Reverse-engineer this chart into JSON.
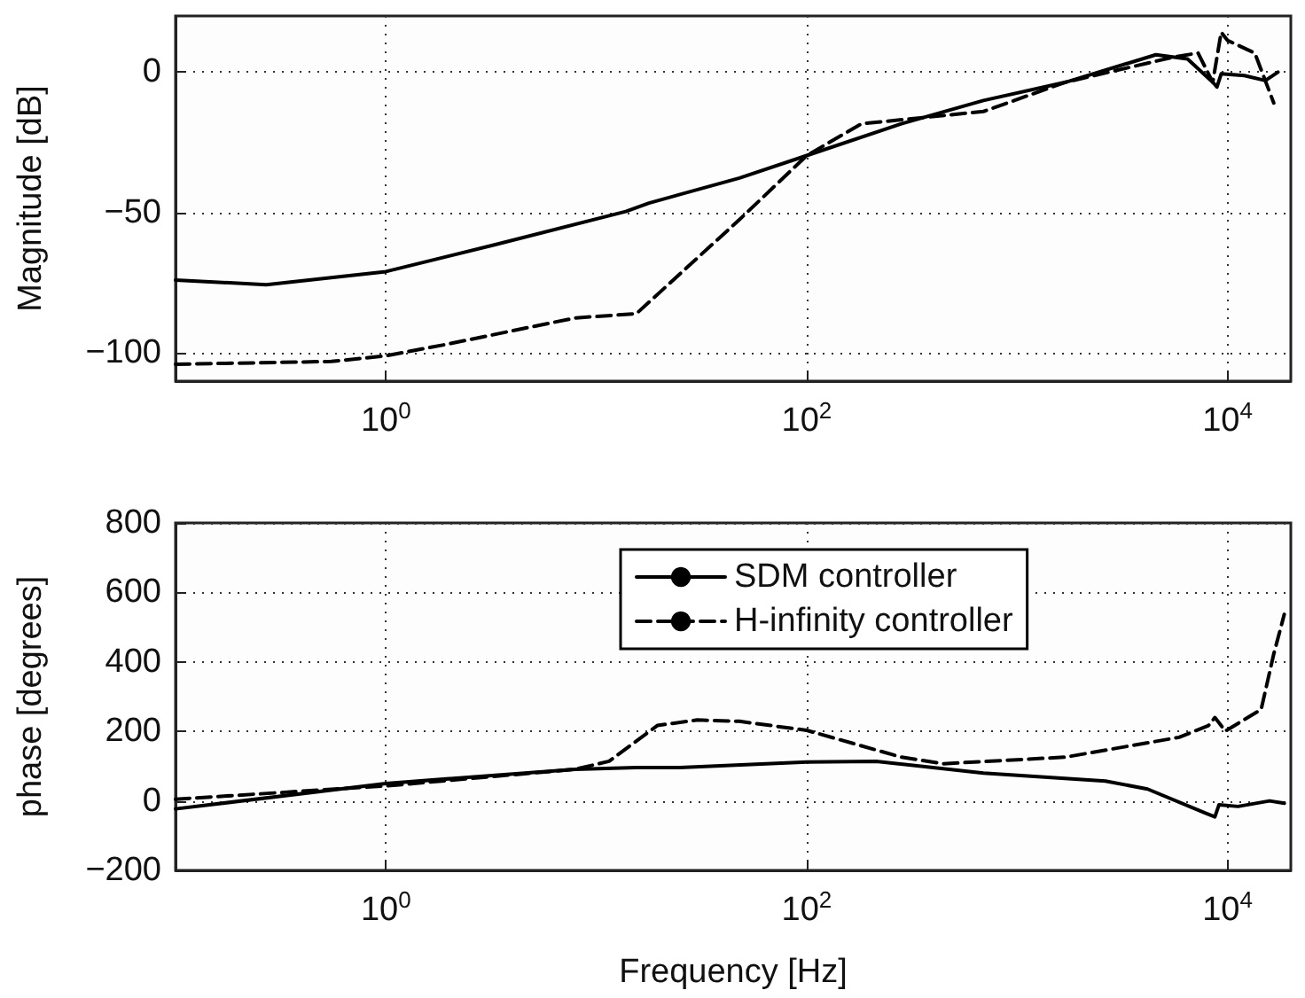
{
  "chart_data": [
    {
      "type": "line",
      "ylabel": "Magnitude [dB]",
      "log": "x",
      "grid": true,
      "marker": "none",
      "xlim": [
        0.1,
        20000
      ],
      "xticks": [
        {
          "value": 1,
          "label": "10$^{0}$"
        },
        {
          "value": 100,
          "label": "10$^{2}$"
        },
        {
          "value": 10000,
          "label": "10$^{4}$"
        }
      ],
      "ylim": [
        -110,
        20
      ],
      "yticks": [
        -100,
        -50,
        0
      ],
      "series": [
        {
          "color": "#000000",
          "line_style": "solid",
          "x": [
            0.1,
            0.27,
            1,
            3.31,
            13.8,
            17.8,
            47.9,
            100,
            282,
            692,
            1698,
            4571,
            6457,
            8511,
            8913,
            9333,
            12023,
            15136,
            17378
          ],
          "values": [
            -74,
            -75.7,
            -71,
            -61.4,
            -49.6,
            -46.6,
            -37.7,
            -29.7,
            -18.4,
            -10.1,
            -3.6,
            6.2,
            4.7,
            -3.6,
            -5.3,
            -0.6,
            -1.2,
            -3,
            0
          ]
        },
        {
          "color": "#000000",
          "line_style": "dashed",
          "x": [
            0.1,
            0.55,
            1,
            1.91,
            7.94,
            15.5,
            47.9,
            100,
            182,
            692,
            1698,
            5495,
            7244,
            8511,
            9333,
            10000,
            13490,
            16596
          ],
          "values": [
            -104,
            -103,
            -101,
            -97,
            -87.5,
            -86,
            -52.5,
            -29.7,
            -18.4,
            -14,
            -3.6,
            5.3,
            6.8,
            -3.6,
            14.2,
            11.3,
            6.8,
            -11
          ]
        }
      ]
    },
    {
      "type": "line",
      "xlabel": "Frequency [Hz]",
      "ylabel": "phase [degrees]",
      "log": "x",
      "grid": true,
      "marker": "none",
      "legend": "top",
      "xlim": [
        0.1,
        20000
      ],
      "xticks": [
        {
          "value": 1,
          "label": "10$^{0}$"
        },
        {
          "value": 100,
          "label": "10$^{2}$"
        },
        {
          "value": 10000,
          "label": "10$^{4}$"
        }
      ],
      "ylim": [
        -200,
        800
      ],
      "yticks": [
        -200,
        0,
        200,
        400,
        600,
        800
      ],
      "series": [
        {
          "name": "SDM controller",
          "color": "#000000",
          "line_style": "solid",
          "x": [
            0.1,
            1,
            7.94,
            15.5,
            25,
            100,
            214,
            692,
            2630,
            4169,
            7762,
            8710,
            9120,
            11220,
            15849,
            18621
          ],
          "values": [
            -23,
            50,
            91,
            96,
            96,
            112,
            114,
            80,
            57,
            34,
            -34,
            -46,
            -11,
            -16,
            0,
            -7
          ]
        },
        {
          "name": "H-infinity controller",
          "color": "#000000",
          "line_style": "dashed",
          "x": [
            0.1,
            1,
            7.94,
            11.5,
            19.5,
            30.2,
            47.9,
            100,
            282,
            447,
            1698,
            5888,
            8128,
            8710,
            9772,
            14454,
            16596,
            18197,
            18621
          ],
          "values": [
            5,
            43,
            91,
            114,
            217,
            233,
            229,
            203,
            126,
            107,
            126,
            183,
            217,
            240,
            201,
            263,
            423,
            514,
            537
          ]
        }
      ]
    }
  ]
}
